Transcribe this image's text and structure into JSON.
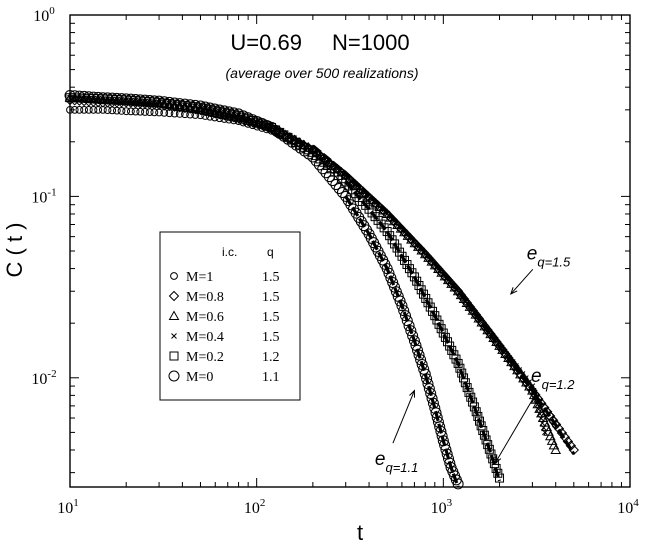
{
  "chart_data": {
    "type": "scatter",
    "title": "U=0.69",
    "title_n": "N=1000",
    "subtitle": "(average over 500 realizations)",
    "xlabel": "t",
    "ylabel": "C ( t )",
    "xscale": "log",
    "yscale": "log",
    "xlim": [
      10,
      10000
    ],
    "ylim": [
      0.0025,
      1
    ],
    "x_ticks": [
      {
        "value": 10,
        "mantissa": "10",
        "exp": "1"
      },
      {
        "value": 100,
        "mantissa": "10",
        "exp": "2"
      },
      {
        "value": 1000,
        "mantissa": "10",
        "exp": "3"
      },
      {
        "value": 10000,
        "mantissa": "10",
        "exp": "4"
      }
    ],
    "y_ticks": [
      {
        "value": 0.01,
        "mantissa": "10",
        "exp": "-2"
      },
      {
        "value": 0.1,
        "mantissa": "10",
        "exp": "-1"
      },
      {
        "value": 1,
        "mantissa": "10",
        "exp": "0"
      }
    ],
    "legend": {
      "position": "left",
      "header_ic": "i.c.",
      "header_q": "q",
      "entries": [
        {
          "marker": "circle-small",
          "label": "M=1",
          "q": "1.5"
        },
        {
          "marker": "diamond",
          "label": "M=0.8",
          "q": "1.5"
        },
        {
          "marker": "triangle",
          "label": "M=0.6",
          "q": "1.5"
        },
        {
          "marker": "x",
          "label": "M=0.4",
          "q": "1.5"
        },
        {
          "marker": "square",
          "label": "M=0.2",
          "q": "1.2"
        },
        {
          "marker": "circle-large",
          "label": "M=0",
          "q": "1.1"
        }
      ]
    },
    "series": [
      {
        "label": "M=1",
        "marker": "circle-small",
        "x": [
          10,
          15,
          20,
          30,
          50,
          80,
          120,
          200,
          300,
          500,
          800,
          1200,
          2000,
          3000,
          4000
        ],
        "y": [
          0.3,
          0.3,
          0.295,
          0.29,
          0.28,
          0.26,
          0.23,
          0.18,
          0.13,
          0.08,
          0.048,
          0.03,
          0.015,
          0.0085,
          0.0055
        ]
      },
      {
        "label": "M=0.8",
        "marker": "diamond",
        "x": [
          10,
          15,
          20,
          30,
          50,
          80,
          120,
          200,
          300,
          500,
          800,
          1200,
          2000,
          3000,
          5000
        ],
        "y": [
          0.34,
          0.33,
          0.33,
          0.32,
          0.3,
          0.27,
          0.24,
          0.18,
          0.13,
          0.08,
          0.048,
          0.03,
          0.015,
          0.0085,
          0.004
        ]
      },
      {
        "label": "M=0.6",
        "marker": "triangle",
        "x": [
          10,
          15,
          20,
          30,
          50,
          80,
          120,
          200,
          300,
          500,
          800,
          1200,
          2000,
          3000,
          4000
        ],
        "y": [
          0.35,
          0.34,
          0.335,
          0.325,
          0.3,
          0.27,
          0.24,
          0.18,
          0.13,
          0.08,
          0.048,
          0.03,
          0.015,
          0.0085,
          0.004
        ]
      },
      {
        "label": "M=0.4",
        "marker": "x",
        "x": [
          10,
          15,
          20,
          30,
          50,
          80,
          120,
          200,
          300,
          500,
          800,
          1200,
          2000,
          3000,
          3500
        ],
        "y": [
          0.35,
          0.345,
          0.34,
          0.33,
          0.31,
          0.28,
          0.24,
          0.18,
          0.13,
          0.08,
          0.048,
          0.03,
          0.015,
          0.009,
          0.005
        ]
      },
      {
        "label": "M=0.2",
        "marker": "square",
        "x": [
          10,
          15,
          20,
          30,
          50,
          80,
          120,
          200,
          300,
          400,
          500,
          700,
          900,
          1200,
          1500,
          1800,
          2000
        ],
        "y": [
          0.35,
          0.345,
          0.34,
          0.33,
          0.31,
          0.28,
          0.24,
          0.175,
          0.12,
          0.085,
          0.064,
          0.036,
          0.022,
          0.012,
          0.0065,
          0.0038,
          0.0028
        ]
      },
      {
        "label": "M=0",
        "marker": "circle-large",
        "x": [
          10,
          15,
          20,
          30,
          50,
          80,
          120,
          200,
          300,
          400,
          500,
          600,
          700,
          800,
          900,
          1000,
          1100,
          1200
        ],
        "y": [
          0.36,
          0.35,
          0.345,
          0.335,
          0.315,
          0.285,
          0.24,
          0.165,
          0.1,
          0.062,
          0.04,
          0.025,
          0.016,
          0.0105,
          0.0068,
          0.0045,
          0.0032,
          0.0026
        ]
      }
    ],
    "fit_curves": [
      {
        "name": "q=1.5",
        "x": [
          200,
          300,
          500,
          800,
          1200,
          2000,
          3000,
          4000,
          5000
        ],
        "y": [
          0.19,
          0.135,
          0.083,
          0.049,
          0.03,
          0.0148,
          0.0085,
          0.0055,
          0.0038
        ]
      },
      {
        "name": "q=1.2",
        "x": [
          300,
          400,
          500,
          700,
          900,
          1200,
          1500,
          1800,
          2000
        ],
        "y": [
          0.12,
          0.085,
          0.064,
          0.036,
          0.022,
          0.012,
          0.0065,
          0.0038,
          0.0027
        ]
      },
      {
        "name": "q=1.1",
        "x": [
          300,
          400,
          500,
          600,
          700,
          800,
          900,
          1000,
          1100,
          1200
        ],
        "y": [
          0.1,
          0.062,
          0.04,
          0.025,
          0.016,
          0.0105,
          0.0068,
          0.0045,
          0.0032,
          0.0025
        ]
      }
    ],
    "annotations": [
      {
        "base": "e",
        "sub": "q=1.5",
        "x": 2800,
        "y": 0.045,
        "arrow_to": [
          2300,
          0.029
        ]
      },
      {
        "base": "e",
        "sub": "q=1.2",
        "x": 2950,
        "y": 0.0095,
        "arrow_to": [
          1900,
          0.0034
        ]
      },
      {
        "base": "e",
        "sub": "q=1.1",
        "x": 430,
        "y": 0.0033,
        "arrow_to": [
          700,
          0.0085
        ]
      }
    ]
  }
}
